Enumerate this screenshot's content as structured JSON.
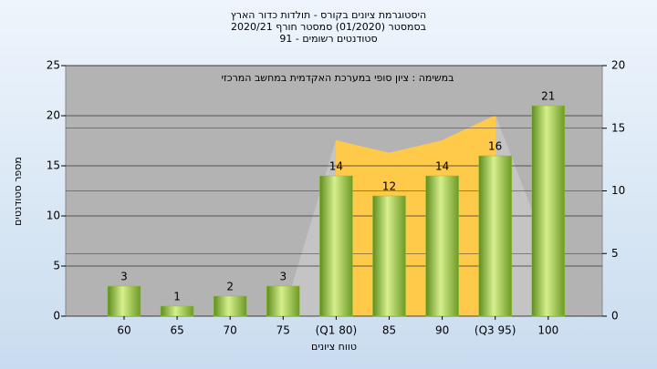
{
  "chart_data": {
    "type": "bar",
    "title": [
      "היסטוגרמת ציונים בקורס - תולדות כדור הארץ",
      "בסמסטר  (01/2020)  סמסטר חורף  2020/21",
      "סטודנטים רשומים - 91"
    ],
    "annotation": "במשימה : ציון סופי במערכת האקדמית במחשב המרכזי",
    "x_label": "טווח ציונים",
    "y_label": "מספר סטודנטים",
    "categories": [
      "60",
      "65",
      "70",
      "75",
      "(Q1 80)",
      "85",
      "90",
      "(Q3 95)",
      "100"
    ],
    "series": [
      {
        "type": "bar",
        "color": "#8cbf3a",
        "values": [
          3,
          1,
          2,
          3,
          14,
          12,
          14,
          16,
          21
        ]
      },
      {
        "type": "area",
        "color": "#c4c4c4",
        "axis": "y2",
        "values": [
          null,
          null,
          null,
          0,
          14,
          13,
          14,
          16,
          5
        ]
      },
      {
        "type": "area",
        "color": "#ffc94a",
        "axis": "y2",
        "values": [
          null,
          null,
          null,
          null,
          14,
          13,
          14,
          16,
          null
        ]
      }
    ],
    "ylim": [
      0,
      25
    ],
    "yticks": [
      0,
      5,
      10,
      15,
      20,
      25
    ],
    "y2lim": [
      0,
      20
    ],
    "y2ticks": [
      0,
      5,
      10,
      15,
      20
    ],
    "grid": true
  }
}
